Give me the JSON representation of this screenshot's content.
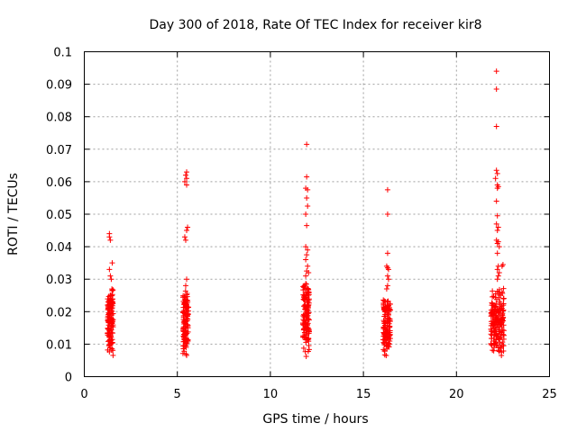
{
  "chart_data": {
    "type": "scatter",
    "title": "Day 300 of 2018, Rate Of TEC Index for receiver kir8",
    "xlabel": "GPS time / hours",
    "ylabel": "ROTI / TECUs",
    "xlim": [
      0,
      25
    ],
    "ylim": [
      0,
      0.1
    ],
    "xticks": [
      0,
      5,
      10,
      15,
      20,
      25
    ],
    "xtick_labels": [
      "0",
      "5",
      "10",
      "15",
      "20",
      "25"
    ],
    "yticks": [
      0,
      0.01,
      0.02,
      0.03,
      0.04,
      0.05,
      0.06,
      0.07,
      0.08,
      0.09,
      0.1
    ],
    "ytick_labels": [
      "0",
      "0.01",
      "0.02",
      "0.03",
      "0.04",
      "0.05",
      "0.06",
      "0.07",
      "0.08",
      "0.09",
      "0.1"
    ],
    "grid": true,
    "marker": "+",
    "color": "#ff0000",
    "series": [
      {
        "name": "ROTI",
        "clusters": [
          {
            "x_range": [
              1.25,
              1.55
            ],
            "y_range": [
              0.006,
              0.028
            ],
            "count": 130,
            "outliers": [
              [
                1.35,
                0.044
              ],
              [
                1.35,
                0.043
              ],
              [
                1.4,
                0.042
              ],
              [
                1.5,
                0.035
              ],
              [
                1.35,
                0.033
              ],
              [
                1.4,
                0.031
              ],
              [
                1.45,
                0.03
              ]
            ]
          },
          {
            "x_range": [
              5.3,
              5.6
            ],
            "y_range": [
              0.006,
              0.027
            ],
            "count": 130,
            "outliers": [
              [
                5.5,
                0.063
              ],
              [
                5.45,
                0.062
              ],
              [
                5.5,
                0.061
              ],
              [
                5.4,
                0.06
              ],
              [
                5.5,
                0.059
              ],
              [
                5.55,
                0.046
              ],
              [
                5.5,
                0.045
              ],
              [
                5.4,
                0.043
              ],
              [
                5.45,
                0.042
              ],
              [
                5.5,
                0.03
              ],
              [
                5.45,
                0.028
              ]
            ]
          },
          {
            "x_range": [
              11.75,
              12.1
            ],
            "y_range": [
              0.006,
              0.03
            ],
            "count": 130,
            "outliers": [
              [
                11.95,
                0.0715
              ],
              [
                11.95,
                0.0615
              ],
              [
                11.9,
                0.058
              ],
              [
                12.0,
                0.0575
              ],
              [
                11.95,
                0.055
              ],
              [
                12.0,
                0.0525
              ],
              [
                11.9,
                0.05
              ],
              [
                11.95,
                0.0465
              ],
              [
                11.9,
                0.04
              ],
              [
                12.0,
                0.039
              ],
              [
                11.95,
                0.0375
              ],
              [
                11.9,
                0.036
              ],
              [
                12.0,
                0.034
              ],
              [
                11.95,
                0.0325
              ],
              [
                12.05,
                0.032
              ],
              [
                11.9,
                0.031
              ]
            ]
          },
          {
            "x_range": [
              16.05,
              16.45
            ],
            "y_range": [
              0.006,
              0.025
            ],
            "count": 130,
            "outliers": [
              [
                16.3,
                0.0575
              ],
              [
                16.3,
                0.05
              ],
              [
                16.3,
                0.038
              ],
              [
                16.25,
                0.034
              ],
              [
                16.3,
                0.0335
              ],
              [
                16.35,
                0.033
              ],
              [
                16.3,
                0.031
              ],
              [
                16.35,
                0.03
              ],
              [
                16.3,
                0.028
              ],
              [
                16.25,
                0.027
              ]
            ]
          },
          {
            "x_range": [
              21.85,
              22.55
            ],
            "y_range": [
              0.006,
              0.028
            ],
            "count": 190,
            "outliers": [
              [
                22.15,
                0.094
              ],
              [
                22.15,
                0.0885
              ],
              [
                22.15,
                0.077
              ],
              [
                22.15,
                0.0635
              ],
              [
                22.2,
                0.0625
              ],
              [
                22.1,
                0.061
              ],
              [
                22.2,
                0.059
              ],
              [
                22.25,
                0.0585
              ],
              [
                22.2,
                0.058
              ],
              [
                22.15,
                0.054
              ],
              [
                22.2,
                0.0495
              ],
              [
                22.15,
                0.047
              ],
              [
                22.25,
                0.046
              ],
              [
                22.2,
                0.045
              ],
              [
                22.15,
                0.042
              ],
              [
                22.25,
                0.0415
              ],
              [
                22.2,
                0.041
              ],
              [
                22.3,
                0.04
              ],
              [
                22.2,
                0.038
              ],
              [
                22.25,
                0.034
              ],
              [
                22.5,
                0.0345
              ],
              [
                22.45,
                0.034
              ],
              [
                22.2,
                0.033
              ],
              [
                22.3,
                0.032
              ],
              [
                22.25,
                0.031
              ],
              [
                22.2,
                0.03
              ]
            ]
          }
        ]
      }
    ]
  }
}
